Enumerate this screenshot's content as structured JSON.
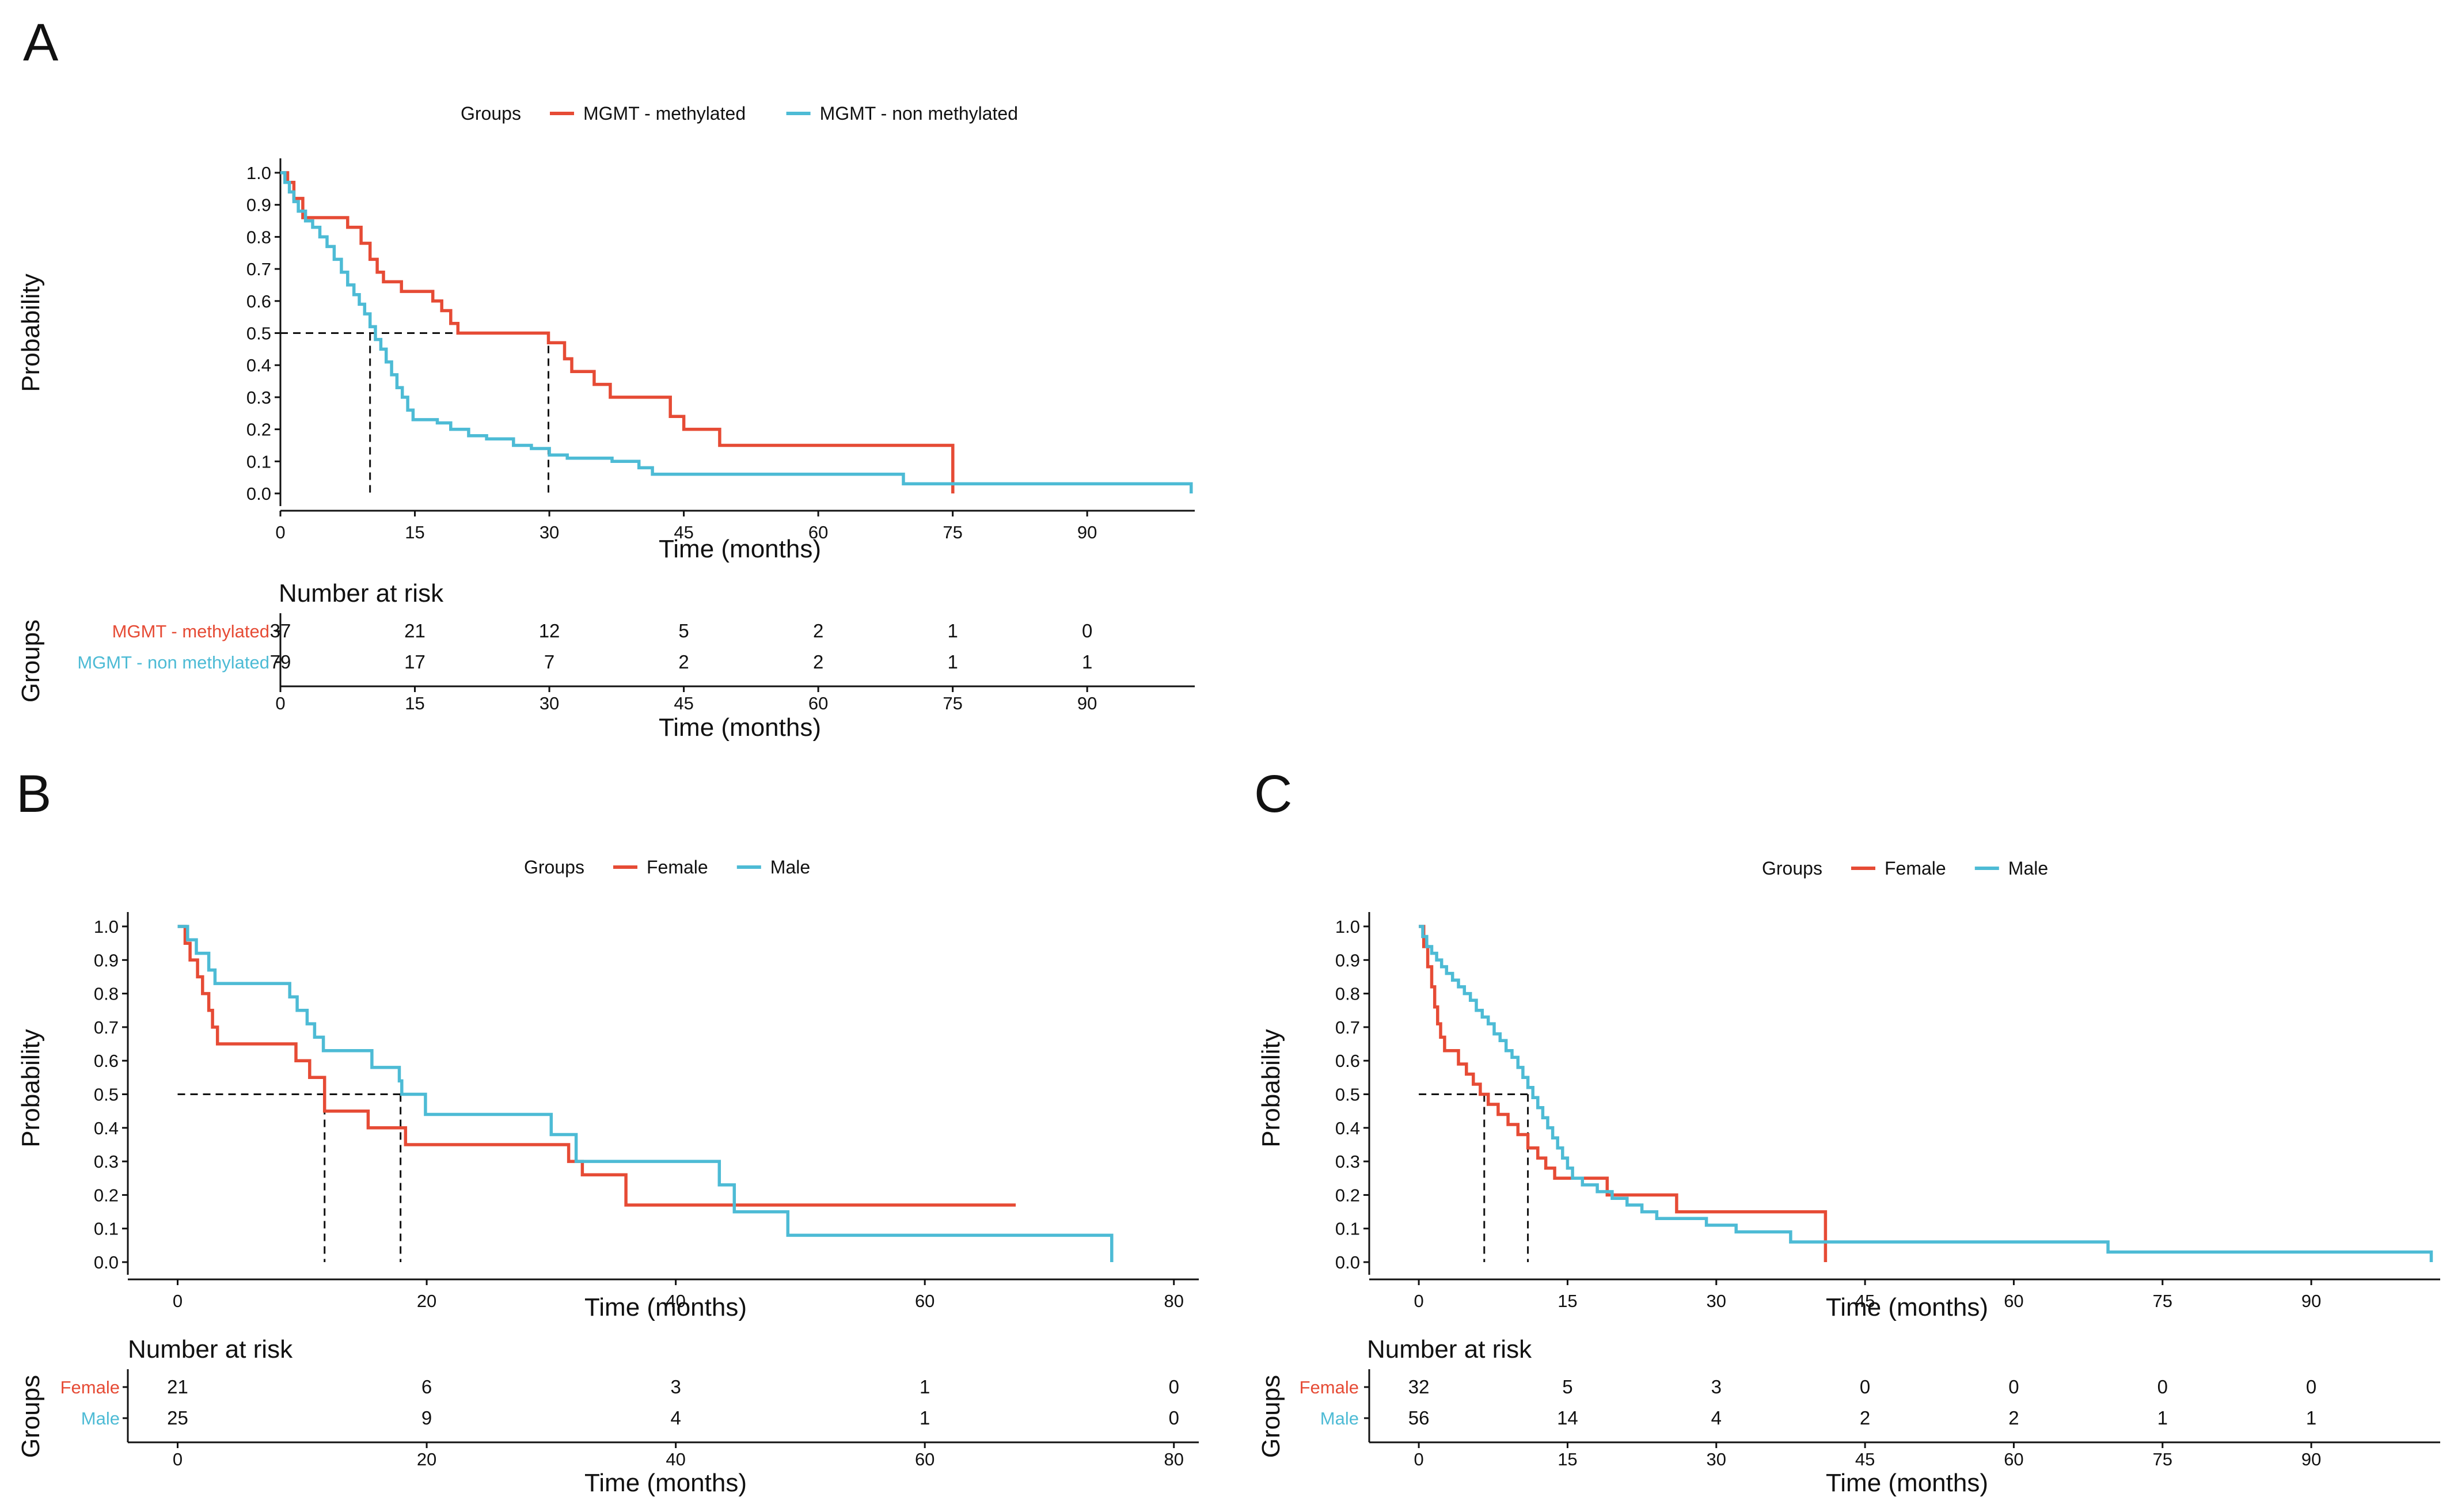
{
  "colors": {
    "red": "#E64B35",
    "blue": "#4DBBD5",
    "axis": "#111111"
  },
  "chart_data": [
    {
      "panel": "A",
      "type": "line",
      "legend_title": "Groups",
      "series_names": [
        "MGMT - methylated",
        "MGMT - non methylated"
      ],
      "ylabel": "Probability",
      "xlabel": "Time (months)",
      "xlim": [
        0,
        102
      ],
      "ylim": [
        0,
        1
      ],
      "xticks": [
        "0",
        "15",
        "30",
        "45",
        "60",
        "75",
        "90"
      ],
      "yticks": [
        "0.0",
        "0.1",
        "0.2",
        "0.3",
        "0.4",
        "0.5",
        "0.6",
        "0.7",
        "0.8",
        "0.9",
        "1.0"
      ],
      "medians": [
        29.9,
        10.0
      ],
      "series": [
        {
          "name": "MGMT - methylated",
          "color": "red",
          "steps": [
            [
              0,
              1
            ],
            [
              0.8,
              0.97
            ],
            [
              1.5,
              0.92
            ],
            [
              2.5,
              0.86
            ],
            [
              7.5,
              0.83
            ],
            [
              9,
              0.78
            ],
            [
              10,
              0.73
            ],
            [
              10.8,
              0.69
            ],
            [
              11.5,
              0.66
            ],
            [
              13.5,
              0.63
            ],
            [
              17,
              0.6
            ],
            [
              18,
              0.57
            ],
            [
              19,
              0.53
            ],
            [
              19.8,
              0.5
            ],
            [
              29.9,
              0.47
            ],
            [
              31.7,
              0.42
            ],
            [
              32.5,
              0.38
            ],
            [
              35,
              0.34
            ],
            [
              36.8,
              0.3
            ],
            [
              43.5,
              0.24
            ],
            [
              45,
              0.2
            ],
            [
              49,
              0.15
            ],
            [
              75,
              0.15
            ],
            [
              75.01,
              0.0
            ]
          ]
        },
        {
          "name": "MGMT - non methylated",
          "color": "blue",
          "steps": [
            [
              0,
              1
            ],
            [
              0.5,
              0.97
            ],
            [
              1,
              0.94
            ],
            [
              1.5,
              0.91
            ],
            [
              2,
              0.88
            ],
            [
              2.8,
              0.85
            ],
            [
              3.6,
              0.83
            ],
            [
              4.4,
              0.8
            ],
            [
              5.2,
              0.77
            ],
            [
              6,
              0.73
            ],
            [
              6.8,
              0.69
            ],
            [
              7.5,
              0.65
            ],
            [
              8.2,
              0.62
            ],
            [
              8.8,
              0.59
            ],
            [
              9.4,
              0.56
            ],
            [
              10,
              0.52
            ],
            [
              10.6,
              0.48
            ],
            [
              11.2,
              0.45
            ],
            [
              11.8,
              0.41
            ],
            [
              12.4,
              0.37
            ],
            [
              13,
              0.33
            ],
            [
              13.6,
              0.3
            ],
            [
              14.2,
              0.26
            ],
            [
              14.8,
              0.23
            ],
            [
              17.5,
              0.22
            ],
            [
              19,
              0.2
            ],
            [
              21,
              0.18
            ],
            [
              23,
              0.17
            ],
            [
              26,
              0.15
            ],
            [
              28,
              0.14
            ],
            [
              30,
              0.12
            ],
            [
              32,
              0.11
            ],
            [
              37,
              0.1
            ],
            [
              40,
              0.08
            ],
            [
              41.5,
              0.06
            ],
            [
              69,
              0.06
            ],
            [
              69.5,
              0.03
            ],
            [
              101.5,
              0.03
            ],
            [
              101.6,
              0.0
            ]
          ]
        }
      ],
      "risk": {
        "title": "Number at risk",
        "group_axis_title": "Groups",
        "xlabel": "Time (months)",
        "times": [
          0,
          15,
          30,
          45,
          60,
          75,
          90
        ],
        "rows": [
          {
            "label": "MGMT - methylated",
            "color": "red",
            "values": [
              "37",
              "21",
              "12",
              "5",
              "2",
              "1",
              "0"
            ]
          },
          {
            "label": "MGMT - non methylated",
            "color": "blue",
            "values": [
              "79",
              "17",
              "7",
              "2",
              "2",
              "1",
              "1"
            ]
          }
        ]
      }
    },
    {
      "panel": "B",
      "type": "line",
      "legend_title": "Groups",
      "series_names": [
        "Female",
        "Male"
      ],
      "ylabel": "Probability",
      "xlabel": "Time (months)",
      "xlim": [
        -4,
        82
      ],
      "ylim": [
        0,
        1
      ],
      "xticks": [
        "0",
        "20",
        "40",
        "60",
        "80"
      ],
      "yticks": [
        "0.0",
        "0.1",
        "0.2",
        "0.3",
        "0.4",
        "0.5",
        "0.6",
        "0.7",
        "0.8",
        "0.9",
        "1.0"
      ],
      "medians": [
        11.8,
        17.9
      ],
      "series": [
        {
          "name": "Female",
          "color": "red",
          "steps": [
            [
              0,
              1
            ],
            [
              0.6,
              0.95
            ],
            [
              1,
              0.9
            ],
            [
              1.6,
              0.85
            ],
            [
              2,
              0.8
            ],
            [
              2.5,
              0.75
            ],
            [
              2.8,
              0.7
            ],
            [
              3.2,
              0.65
            ],
            [
              9.5,
              0.6
            ],
            [
              10.6,
              0.55
            ],
            [
              11.8,
              0.45
            ],
            [
              15.3,
              0.4
            ],
            [
              18.3,
              0.35
            ],
            [
              31.4,
              0.3
            ],
            [
              32.5,
              0.26
            ],
            [
              36,
              0.17
            ],
            [
              67.3,
              0.17
            ]
          ]
        },
        {
          "name": "Male",
          "color": "blue",
          "steps": [
            [
              0,
              1
            ],
            [
              0.8,
              0.96
            ],
            [
              1.5,
              0.92
            ],
            [
              2.5,
              0.87
            ],
            [
              3,
              0.83
            ],
            [
              9,
              0.79
            ],
            [
              9.6,
              0.75
            ],
            [
              10.4,
              0.71
            ],
            [
              11,
              0.67
            ],
            [
              11.7,
              0.63
            ],
            [
              15.6,
              0.58
            ],
            [
              17.8,
              0.54
            ],
            [
              18,
              0.5
            ],
            [
              19.9,
              0.44
            ],
            [
              30,
              0.38
            ],
            [
              32,
              0.3
            ],
            [
              43.5,
              0.23
            ],
            [
              44.7,
              0.15
            ],
            [
              49,
              0.08
            ],
            [
              75,
              0.08
            ],
            [
              75.01,
              0.0
            ]
          ]
        }
      ],
      "risk": {
        "title": "Number at risk",
        "group_axis_title": "Groups",
        "xlabel": "Time (months)",
        "times": [
          0,
          20,
          40,
          60,
          80
        ],
        "rows": [
          {
            "label": "Female",
            "color": "red",
            "values": [
              "21",
              "6",
              "3",
              "1",
              "0"
            ]
          },
          {
            "label": "Male",
            "color": "blue",
            "values": [
              "25",
              "9",
              "4",
              "1",
              "0"
            ]
          }
        ]
      }
    },
    {
      "panel": "C",
      "type": "line",
      "legend_title": "Groups",
      "series_names": [
        "Female",
        "Male"
      ],
      "ylabel": "Probability",
      "xlabel": "Time (months)",
      "xlim": [
        -5,
        103
      ],
      "ylim": [
        0,
        1
      ],
      "xticks": [
        "0",
        "15",
        "30",
        "45",
        "60",
        "75",
        "90"
      ],
      "yticks": [
        "0.0",
        "0.1",
        "0.2",
        "0.3",
        "0.4",
        "0.5",
        "0.6",
        "0.7",
        "0.8",
        "0.9",
        "1.0"
      ],
      "medians": [
        6.6,
        11.0
      ],
      "series": [
        {
          "name": "Female",
          "color": "red",
          "steps": [
            [
              0,
              1
            ],
            [
              0.5,
              0.94
            ],
            [
              0.9,
              0.88
            ],
            [
              1.3,
              0.82
            ],
            [
              1.6,
              0.76
            ],
            [
              1.9,
              0.71
            ],
            [
              2.2,
              0.67
            ],
            [
              2.6,
              0.63
            ],
            [
              4,
              0.59
            ],
            [
              4.8,
              0.56
            ],
            [
              5.5,
              0.53
            ],
            [
              6.2,
              0.5
            ],
            [
              7,
              0.47
            ],
            [
              8,
              0.44
            ],
            [
              9,
              0.41
            ],
            [
              10,
              0.38
            ],
            [
              11,
              0.34
            ],
            [
              12,
              0.31
            ],
            [
              12.8,
              0.28
            ],
            [
              13.7,
              0.25
            ],
            [
              19,
              0.2
            ],
            [
              26,
              0.15
            ],
            [
              41,
              0.15
            ],
            [
              41.01,
              0.0
            ]
          ]
        },
        {
          "name": "Male",
          "color": "blue",
          "steps": [
            [
              0,
              1
            ],
            [
              0.4,
              0.97
            ],
            [
              0.8,
              0.94
            ],
            [
              1.3,
              0.92
            ],
            [
              1.8,
              0.9
            ],
            [
              2.3,
              0.88
            ],
            [
              2.8,
              0.86
            ],
            [
              3.4,
              0.84
            ],
            [
              4,
              0.82
            ],
            [
              4.6,
              0.8
            ],
            [
              5.2,
              0.78
            ],
            [
              5.8,
              0.75
            ],
            [
              6.4,
              0.73
            ],
            [
              7,
              0.71
            ],
            [
              7.6,
              0.68
            ],
            [
              8.2,
              0.66
            ],
            [
              8.8,
              0.63
            ],
            [
              9.4,
              0.61
            ],
            [
              10,
              0.58
            ],
            [
              10.5,
              0.55
            ],
            [
              11,
              0.52
            ],
            [
              11.5,
              0.49
            ],
            [
              12,
              0.46
            ],
            [
              12.5,
              0.43
            ],
            [
              13,
              0.4
            ],
            [
              13.5,
              0.37
            ],
            [
              14,
              0.34
            ],
            [
              14.5,
              0.31
            ],
            [
              15,
              0.28
            ],
            [
              15.5,
              0.25
            ],
            [
              16.5,
              0.23
            ],
            [
              18,
              0.21
            ],
            [
              19.5,
              0.19
            ],
            [
              21,
              0.17
            ],
            [
              22.5,
              0.15
            ],
            [
              24,
              0.13
            ],
            [
              29,
              0.11
            ],
            [
              32,
              0.09
            ],
            [
              37,
              0.09
            ],
            [
              37.5,
              0.06
            ],
            [
              69,
              0.06
            ],
            [
              69.5,
              0.03
            ],
            [
              102,
              0.03
            ],
            [
              102.1,
              0.0
            ]
          ]
        }
      ],
      "risk": {
        "title": "Number at risk",
        "group_axis_title": "Groups",
        "xlabel": "Time (months)",
        "times": [
          0,
          15,
          30,
          45,
          60,
          75,
          90
        ],
        "rows": [
          {
            "label": "Female",
            "color": "red",
            "values": [
              "32",
              "5",
              "3",
              "0",
              "0",
              "0",
              "0"
            ]
          },
          {
            "label": "Male",
            "color": "blue",
            "values": [
              "56",
              "14",
              "4",
              "2",
              "2",
              "1",
              "1"
            ]
          }
        ]
      }
    }
  ]
}
